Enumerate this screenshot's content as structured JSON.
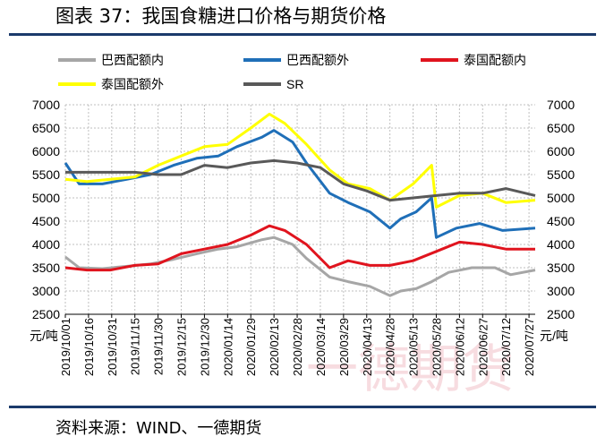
{
  "header": {
    "title": "图表 37：我国食糖进口价格与期货价格"
  },
  "footer": {
    "source": "资料来源：WIND、一德期货"
  },
  "watermark": "一德期货",
  "colors": {
    "brazil_in": "#a6a6a6",
    "brazil_out": "#1f6fb8",
    "thai_in": "#e0141e",
    "thai_out": "#ffff00",
    "sr": "#595959",
    "rule": "#1b3a6b",
    "watermark": "#e89aa6"
  },
  "chart_data": {
    "type": "line",
    "y_unit_left": "元/吨",
    "y_unit_right": "元/吨",
    "ylim": [
      2500,
      7000
    ],
    "yticks": [
      2500,
      3000,
      3500,
      4000,
      4500,
      5000,
      5500,
      6000,
      6500,
      7000
    ],
    "grid": true,
    "legend": "top",
    "x_ticks": [
      "2019/10/01",
      "2019/10/16",
      "2019/10/31",
      "2019/11/15",
      "2019/11/30",
      "2019/12/15",
      "2019/12/30",
      "2020/01/14",
      "2020/01/29",
      "2020/02/13",
      "2020/02/28",
      "2020/03/14",
      "2020/03/29",
      "2020/04/13",
      "2020/04/28",
      "2020/05/13",
      "2020/05/28",
      "2020/06/12",
      "2020/06/27",
      "2020/07/12",
      "2020/07/27"
    ],
    "x_start": "2019-10-01",
    "x_end": "2020-07-31",
    "series": [
      {
        "name": "巴西配额内",
        "color_key": "brazil_in",
        "points": [
          [
            "2019-10-01",
            3730
          ],
          [
            "2019-10-10",
            3500
          ],
          [
            "2019-10-25",
            3480
          ],
          [
            "2019-11-10",
            3530
          ],
          [
            "2019-11-25",
            3580
          ],
          [
            "2019-12-10",
            3680
          ],
          [
            "2019-12-25",
            3800
          ],
          [
            "2020-01-08",
            3900
          ],
          [
            "2020-01-20",
            3950
          ],
          [
            "2020-02-05",
            4100
          ],
          [
            "2020-02-13",
            4150
          ],
          [
            "2020-02-25",
            4000
          ],
          [
            "2020-03-05",
            3700
          ],
          [
            "2020-03-20",
            3300
          ],
          [
            "2020-04-01",
            3200
          ],
          [
            "2020-04-15",
            3100
          ],
          [
            "2020-04-28",
            2900
          ],
          [
            "2020-05-05",
            3000
          ],
          [
            "2020-05-15",
            3050
          ],
          [
            "2020-05-25",
            3200
          ],
          [
            "2020-06-05",
            3400
          ],
          [
            "2020-06-20",
            3500
          ],
          [
            "2020-07-05",
            3500
          ],
          [
            "2020-07-15",
            3350
          ],
          [
            "2020-07-31",
            3450
          ]
        ]
      },
      {
        "name": "巴西配额外",
        "color_key": "brazil_out",
        "points": [
          [
            "2019-10-01",
            5750
          ],
          [
            "2019-10-10",
            5300
          ],
          [
            "2019-10-25",
            5300
          ],
          [
            "2019-11-10",
            5400
          ],
          [
            "2019-11-25",
            5500
          ],
          [
            "2019-12-10",
            5700
          ],
          [
            "2019-12-25",
            5850
          ],
          [
            "2020-01-08",
            5900
          ],
          [
            "2020-01-20",
            6100
          ],
          [
            "2020-02-05",
            6300
          ],
          [
            "2020-02-13",
            6450
          ],
          [
            "2020-02-25",
            6200
          ],
          [
            "2020-03-05",
            5750
          ],
          [
            "2020-03-20",
            5100
          ],
          [
            "2020-04-01",
            4900
          ],
          [
            "2020-04-15",
            4700
          ],
          [
            "2020-04-28",
            4350
          ],
          [
            "2020-05-05",
            4550
          ],
          [
            "2020-05-15",
            4700
          ],
          [
            "2020-05-25",
            5000
          ],
          [
            "2020-05-28",
            4150
          ],
          [
            "2020-06-10",
            4350
          ],
          [
            "2020-06-25",
            4450
          ],
          [
            "2020-07-10",
            4300
          ],
          [
            "2020-07-31",
            4350
          ]
        ]
      },
      {
        "name": "泰国配额内",
        "color_key": "thai_in",
        "points": [
          [
            "2019-10-01",
            3500
          ],
          [
            "2019-10-15",
            3450
          ],
          [
            "2019-10-30",
            3450
          ],
          [
            "2019-11-15",
            3550
          ],
          [
            "2019-11-30",
            3580
          ],
          [
            "2019-12-15",
            3800
          ],
          [
            "2019-12-30",
            3900
          ],
          [
            "2020-01-14",
            4000
          ],
          [
            "2020-01-29",
            4200
          ],
          [
            "2020-02-10",
            4400
          ],
          [
            "2020-02-20",
            4300
          ],
          [
            "2020-03-05",
            4000
          ],
          [
            "2020-03-20",
            3500
          ],
          [
            "2020-04-01",
            3650
          ],
          [
            "2020-04-15",
            3550
          ],
          [
            "2020-04-28",
            3550
          ],
          [
            "2020-05-13",
            3650
          ],
          [
            "2020-05-28",
            3850
          ],
          [
            "2020-06-12",
            4050
          ],
          [
            "2020-06-27",
            4000
          ],
          [
            "2020-07-12",
            3900
          ],
          [
            "2020-07-31",
            3900
          ]
        ]
      },
      {
        "name": "泰国配额外",
        "color_key": "thai_out",
        "points": [
          [
            "2019-10-01",
            5400
          ],
          [
            "2019-10-15",
            5350
          ],
          [
            "2019-10-30",
            5400
          ],
          [
            "2019-11-15",
            5450
          ],
          [
            "2019-11-30",
            5700
          ],
          [
            "2019-12-15",
            5900
          ],
          [
            "2019-12-30",
            6100
          ],
          [
            "2020-01-14",
            6150
          ],
          [
            "2020-01-29",
            6500
          ],
          [
            "2020-02-10",
            6800
          ],
          [
            "2020-02-20",
            6600
          ],
          [
            "2020-03-05",
            6150
          ],
          [
            "2020-03-20",
            5600
          ],
          [
            "2020-04-01",
            5300
          ],
          [
            "2020-04-15",
            5200
          ],
          [
            "2020-04-28",
            4950
          ],
          [
            "2020-05-13",
            5300
          ],
          [
            "2020-05-25",
            5700
          ],
          [
            "2020-05-28",
            4800
          ],
          [
            "2020-06-12",
            5050
          ],
          [
            "2020-06-27",
            5100
          ],
          [
            "2020-07-12",
            4900
          ],
          [
            "2020-07-31",
            4950
          ]
        ]
      },
      {
        "name": "SR",
        "color_key": "sr",
        "points": [
          [
            "2019-10-01",
            5550
          ],
          [
            "2019-10-15",
            5550
          ],
          [
            "2019-10-30",
            5550
          ],
          [
            "2019-11-15",
            5550
          ],
          [
            "2019-11-30",
            5500
          ],
          [
            "2019-12-15",
            5500
          ],
          [
            "2019-12-30",
            5700
          ],
          [
            "2020-01-14",
            5650
          ],
          [
            "2020-01-29",
            5750
          ],
          [
            "2020-02-13",
            5800
          ],
          [
            "2020-02-28",
            5750
          ],
          [
            "2020-03-14",
            5650
          ],
          [
            "2020-03-29",
            5300
          ],
          [
            "2020-04-13",
            5150
          ],
          [
            "2020-04-28",
            4950
          ],
          [
            "2020-05-13",
            5000
          ],
          [
            "2020-05-28",
            5050
          ],
          [
            "2020-06-12",
            5100
          ],
          [
            "2020-06-27",
            5100
          ],
          [
            "2020-07-12",
            5200
          ],
          [
            "2020-07-31",
            5050
          ]
        ]
      }
    ]
  }
}
